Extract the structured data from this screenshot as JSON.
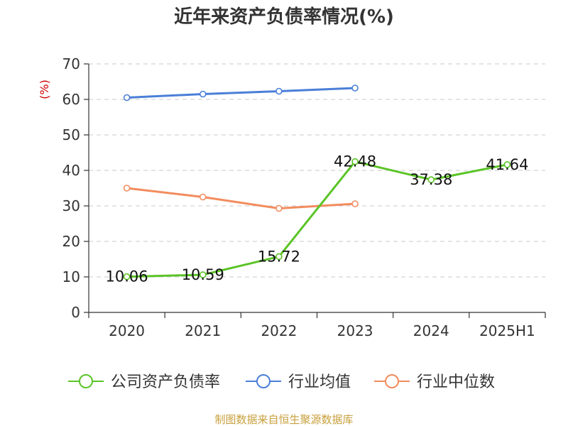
{
  "chart_data": {
    "type": "line",
    "title": "近年来资产负债率情况(%)",
    "ylabel": "(%)",
    "xlabel": "",
    "categories": [
      "2020",
      "2021",
      "2022",
      "2023",
      "2024",
      "2025H1"
    ],
    "ylim": [
      0,
      70
    ],
    "yticks": [
      0,
      10,
      20,
      30,
      40,
      50,
      60,
      70
    ],
    "grid": true,
    "legend_position": "bottom",
    "series": [
      {
        "name": "公司资产负债率",
        "color": "#5bc427",
        "values": [
          10.06,
          10.59,
          15.72,
          42.48,
          37.38,
          41.64
        ],
        "labels": [
          "10.06",
          "10.59",
          "15.72",
          "42.48",
          "37.38",
          "41.64"
        ]
      },
      {
        "name": "行业均值",
        "color": "#4a7fd8",
        "values": [
          60.5,
          61.5,
          62.3,
          63.2,
          null,
          null
        ]
      },
      {
        "name": "行业中位数",
        "color": "#f28c5e",
        "values": [
          35.0,
          32.5,
          29.3,
          30.6,
          null,
          null
        ]
      }
    ]
  },
  "source": "制图数据来自恒生聚源数据库"
}
